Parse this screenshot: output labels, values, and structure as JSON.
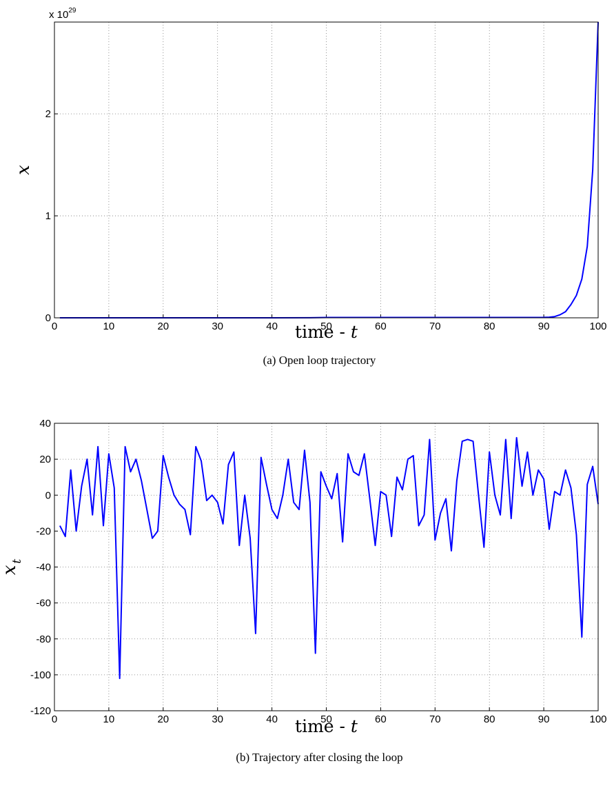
{
  "chart_data": [
    {
      "type": "line",
      "caption": "(a) Open loop trajectory",
      "xlabel_text": "time - ",
      "xlabel_var": "t",
      "ylabel_var": "x",
      "ylabel_sub": "",
      "y_exponent_base": "x 10",
      "y_exponent_power": "29",
      "xlim": [
        0,
        100
      ],
      "ylim": [
        0,
        2.9
      ],
      "xticks": [
        0,
        10,
        20,
        30,
        40,
        50,
        60,
        70,
        80,
        90,
        100
      ],
      "yticks": [
        0,
        1,
        2
      ],
      "grid": true,
      "series": [
        {
          "color": "#0000ff",
          "x": [
            1,
            10,
            20,
            30,
            40,
            47,
            50,
            60,
            70,
            80,
            88,
            90,
            91,
            92,
            93,
            94,
            95,
            96,
            97,
            98,
            99,
            100
          ],
          "y": [
            0,
            0,
            0,
            0,
            0,
            0.001,
            0.003,
            0.003,
            0.003,
            0.003,
            0.003,
            0.004,
            0.006,
            0.012,
            0.03,
            0.06,
            0.13,
            0.22,
            0.38,
            0.7,
            1.45,
            2.9
          ]
        }
      ]
    },
    {
      "type": "line",
      "caption": "(b) Trajectory after closing the loop",
      "xlabel_text": "time - ",
      "xlabel_var": "t",
      "ylabel_var": "x",
      "ylabel_sub": "t",
      "xlim": [
        0,
        100
      ],
      "ylim": [
        -120,
        40
      ],
      "xticks": [
        0,
        10,
        20,
        30,
        40,
        50,
        60,
        70,
        80,
        90,
        100
      ],
      "yticks": [
        -120,
        -100,
        -80,
        -60,
        -40,
        -20,
        0,
        20,
        40
      ],
      "grid": true,
      "series": [
        {
          "color": "#0000ff",
          "x": [
            1,
            2,
            3,
            4,
            5,
            6,
            7,
            8,
            9,
            10,
            11,
            12,
            13,
            14,
            15,
            16,
            17,
            18,
            19,
            20,
            21,
            22,
            23,
            24,
            25,
            26,
            27,
            28,
            29,
            30,
            31,
            32,
            33,
            34,
            35,
            36,
            37,
            38,
            39,
            40,
            41,
            42,
            43,
            44,
            45,
            46,
            47,
            48,
            49,
            50,
            51,
            52,
            53,
            54,
            55,
            56,
            57,
            58,
            59,
            60,
            61,
            62,
            63,
            64,
            65,
            66,
            67,
            68,
            69,
            70,
            71,
            72,
            73,
            74,
            75,
            76,
            77,
            78,
            79,
            80,
            81,
            82,
            83,
            84,
            85,
            86,
            87,
            88,
            89,
            90,
            91,
            92,
            93,
            94,
            95,
            96,
            97,
            98,
            99,
            100
          ],
          "y": [
            -17,
            -23,
            14,
            -20,
            5,
            20,
            -11,
            27,
            -17,
            23,
            4,
            -102,
            27,
            13,
            20,
            8,
            -8,
            -24,
            -20,
            22,
            10,
            0,
            -5,
            -8,
            -22,
            27,
            19,
            -3,
            0,
            -4,
            -16,
            17,
            24,
            -28,
            0,
            -24,
            -77,
            21,
            6,
            -8,
            -13,
            0,
            20,
            -4,
            -8,
            25,
            -4,
            -88,
            13,
            5,
            -2,
            12,
            -26,
            23,
            13,
            11,
            23,
            -2,
            -28,
            2,
            0,
            -23,
            10,
            3,
            20,
            22,
            -17,
            -11,
            31,
            -25,
            -10,
            -2,
            -31,
            8,
            30,
            31,
            30,
            0,
            -29,
            24,
            0,
            -11,
            31,
            -13,
            32,
            5,
            24,
            0,
            14,
            9,
            -19,
            2,
            0,
            14,
            4,
            -22,
            -79,
            6,
            16,
            -5
          ]
        }
      ]
    }
  ]
}
